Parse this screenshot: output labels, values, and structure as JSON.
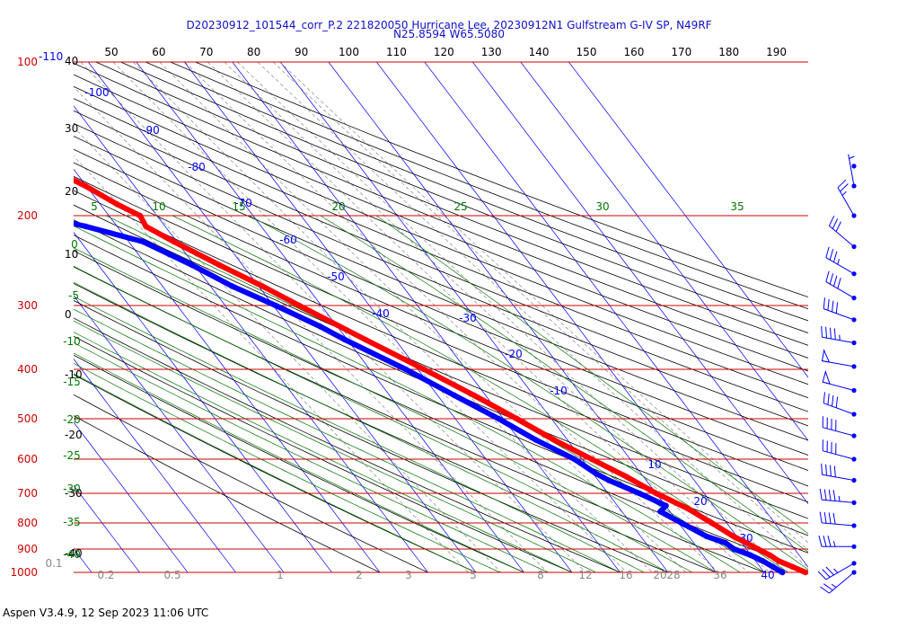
{
  "title_line1": "D20230912_101544_corr_P.2 221820050 Hurricane Lee, 20230912N1 Gulfstream G-IV SP, N49RF",
  "title_line2": "N25.8594 W65.5080",
  "footer": "Aspen V3.4.9, 12 Sep 2023  11:06 UTC",
  "colors": {
    "temperature": "#ff0000",
    "dewpoint": "#0000ff",
    "isobar": "#cc0000",
    "isotherm": "#0000ff",
    "dry_adiabat": "#000000",
    "moist_adiabat": "#007700",
    "mixing_ratio": "#888888",
    "title": "#1010c8"
  },
  "chart_data": {
    "type": "line",
    "diagram": "skew-T log-P",
    "pressure_levels": [
      100,
      200,
      300,
      400,
      500,
      600,
      700,
      800,
      900,
      1000
    ],
    "left_pressure_labels": [
      "100",
      "200",
      "300",
      "400",
      "500",
      "600",
      "700",
      "800",
      "900",
      "1000"
    ],
    "top_axis_labels": [
      "50",
      "60",
      "70",
      "80",
      "90",
      "100",
      "110",
      "120",
      "130",
      "140",
      "150",
      "160",
      "170",
      "180",
      "190"
    ],
    "dry_adiabat_labels": [
      "40",
      "30",
      "20",
      "10",
      "0",
      "-10",
      "-20",
      "-30",
      "-40"
    ],
    "isotherm_labels": [
      "-100",
      "-90",
      "-80",
      "-70",
      "-60",
      "-50",
      "-40",
      "-30",
      "-20",
      "-10",
      "10",
      "20",
      "30",
      "40"
    ],
    "moist_adiabat_labels": [
      "5",
      "10",
      "15",
      "20",
      "25",
      "30",
      "35",
      "0",
      "-5",
      "-10",
      "-15",
      "-20",
      "-25",
      "-30",
      "-35",
      "-40"
    ],
    "mixing_ratio_labels": [
      "0.1",
      "0.2",
      "0.5",
      "1",
      "2",
      "3",
      "5",
      "8",
      "12",
      "16",
      "20",
      "28",
      "36",
      "40"
    ],
    "series": [
      {
        "values": [
          {
            "p": 1000,
            "t": 28.6
          },
          {
            "p": 975,
            "t": 26.8
          },
          {
            "p": 950,
            "t": 24.8
          },
          {
            "p": 925,
            "t": 23.9
          },
          {
            "p": 900,
            "t": 22.4
          },
          {
            "p": 875,
            "t": 20.9
          },
          {
            "p": 850,
            "t": 19.3
          },
          {
            "p": 800,
            "t": 16.9
          },
          {
            "p": 750,
            "t": 14.2
          },
          {
            "p": 700,
            "t": 10.0
          },
          {
            "p": 650,
            "t": 6.5
          },
          {
            "p": 600,
            "t": 2.0
          },
          {
            "p": 550,
            "t": -2.8
          },
          {
            "p": 500,
            "t": -7.2
          },
          {
            "p": 450,
            "t": -12.4
          },
          {
            "p": 400,
            "t": -18.7
          },
          {
            "p": 350,
            "t": -26.2
          },
          {
            "p": 300,
            "t": -34.6
          },
          {
            "p": 275,
            "t": -39.2
          },
          {
            "p": 250,
            "t": -44.8
          },
          {
            "p": 225,
            "t": -50.6
          },
          {
            "p": 210,
            "t": -54.0
          },
          {
            "p": 200,
            "t": -53.5
          },
          {
            "p": 190,
            "t": -56.5
          },
          {
            "p": 175,
            "t": -60.2
          },
          {
            "p": 165,
            "t": -63.6
          }
        ]
      },
      {
        "values": [
          {
            "p": 1000,
            "t": 23.8
          },
          {
            "p": 975,
            "t": 22.7
          },
          {
            "p": 950,
            "t": 21.5
          },
          {
            "p": 925,
            "t": 19.9
          },
          {
            "p": 900,
            "t": 17.4
          },
          {
            "p": 875,
            "t": 16.6
          },
          {
            "p": 850,
            "t": 13.7
          },
          {
            "p": 800,
            "t": 10.6
          },
          {
            "p": 760,
            "t": 8.0
          },
          {
            "p": 740,
            "t": 10.1
          },
          {
            "p": 700,
            "t": 6.5
          },
          {
            "p": 660,
            "t": 2.2
          },
          {
            "p": 640,
            "t": 0.6
          },
          {
            "p": 600,
            "t": -1.6
          },
          {
            "p": 550,
            "t": -6.6
          },
          {
            "p": 500,
            "t": -11.0
          },
          {
            "p": 450,
            "t": -16.5
          },
          {
            "p": 400,
            "t": -22.5
          },
          {
            "p": 350,
            "t": -30.5
          },
          {
            "p": 330,
            "t": -33.5
          },
          {
            "p": 300,
            "t": -39.5
          },
          {
            "p": 275,
            "t": -45.5
          },
          {
            "p": 250,
            "t": -50.5
          },
          {
            "p": 225,
            "t": -57.0
          },
          {
            "p": 210,
            "t": -66.5
          },
          {
            "p": 200,
            "t": -74.5
          },
          {
            "p": 190,
            "t": -81.0
          },
          {
            "p": 180,
            "t": -83.0
          },
          {
            "p": 170,
            "t": -82.5
          },
          {
            "p": 165,
            "t": -80.5
          }
        ]
      }
    ],
    "wind_barbs": [
      {
        "p": 160,
        "dir": 0,
        "speed_kt": 0
      },
      {
        "p": 175,
        "dir": 350,
        "speed_kt": 5
      },
      {
        "p": 200,
        "dir": 330,
        "speed_kt": 25
      },
      {
        "p": 230,
        "dir": 310,
        "speed_kt": 30
      },
      {
        "p": 260,
        "dir": 300,
        "speed_kt": 35
      },
      {
        "p": 290,
        "dir": 300,
        "speed_kt": 40
      },
      {
        "p": 320,
        "dir": 290,
        "speed_kt": 40
      },
      {
        "p": 355,
        "dir": 280,
        "speed_kt": 45
      },
      {
        "p": 395,
        "dir": 280,
        "speed_kt": 50
      },
      {
        "p": 440,
        "dir": 285,
        "speed_kt": 50
      },
      {
        "p": 490,
        "dir": 290,
        "speed_kt": 40
      },
      {
        "p": 540,
        "dir": 285,
        "speed_kt": 40
      },
      {
        "p": 600,
        "dir": 285,
        "speed_kt": 40
      },
      {
        "p": 660,
        "dir": 280,
        "speed_kt": 40
      },
      {
        "p": 730,
        "dir": 275,
        "speed_kt": 45
      },
      {
        "p": 810,
        "dir": 275,
        "speed_kt": 40
      },
      {
        "p": 890,
        "dir": 270,
        "speed_kt": 35
      },
      {
        "p": 960,
        "dir": 240,
        "speed_kt": 35
      },
      {
        "p": 1000,
        "dir": 230,
        "speed_kt": 25
      }
    ]
  }
}
